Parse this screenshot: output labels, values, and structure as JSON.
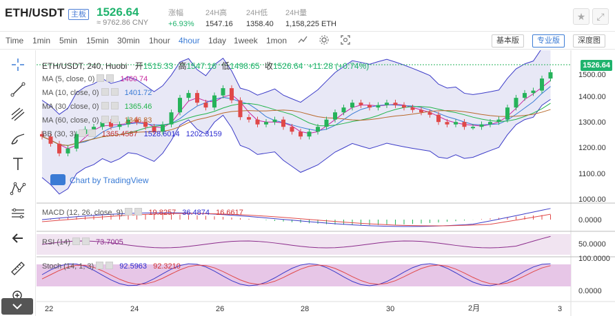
{
  "header": {
    "pair": "ETH/USDT",
    "badge": "主板",
    "price": "1526.64",
    "cny": "≈ 9762.86 CNY",
    "stats": [
      {
        "label": "涨幅",
        "value": "+6.93%"
      },
      {
        "label": "24H高",
        "value": "1547.16"
      },
      {
        "label": "24H低",
        "value": "1358.40"
      },
      {
        "label": "24H量",
        "value": "1,158,225 ETH"
      }
    ],
    "star_icon": "star-icon",
    "expand_icon": "expand-icon"
  },
  "toolbar": {
    "timeframes": [
      "Time",
      "1min",
      "5min",
      "15min",
      "30min",
      "1hour",
      "4hour",
      "1day",
      "1week",
      "1mon"
    ],
    "active": "4hour",
    "versions": [
      "基本版",
      "专业版",
      "深度图"
    ],
    "active_version": "专业版"
  },
  "chart": {
    "title": "ETH/USDT, 240, Huobi",
    "open_label": "开",
    "open": "1515.33",
    "high_label": "高",
    "high": "1547.16",
    "low_label": "低",
    "low": "1498.65",
    "close_label": "收",
    "close": "1526.64",
    "change": "+11.28 (+0.74%)",
    "current_price": "1526.64",
    "watermark": "Chart by TradingView",
    "indicators": [
      {
        "name": "MA (5, close, 0)",
        "value": "1460.74",
        "color": "#c7259c"
      },
      {
        "name": "MA (10, close, 0)",
        "value": "1401.72",
        "color": "#3a7bd5"
      },
      {
        "name": "MA (30, close, 0)",
        "value": "1365.46",
        "color": "#21b44a"
      },
      {
        "name": "MA (60, close, 0)",
        "value": "1346.83",
        "color": "#b8682a"
      }
    ],
    "bb": {
      "name": "BB (30, 3)",
      "v1": "1365.4587",
      "v2": "1528.6014",
      "v3": "1202.3159"
    },
    "macd": {
      "name": "MACD (12, 26, close, 9)",
      "v1": "19.8257",
      "v2": "36.4874",
      "v3": "16.6617"
    },
    "rsi": {
      "name": "RSI (14)",
      "value": "73.7005"
    },
    "stoch": {
      "name": "Stoch (14, 1, 3)",
      "v1": "92.5963",
      "v2": "92.3210"
    },
    "price_axis": [
      "1500.00",
      "1400.00",
      "1300.00",
      "1200.00",
      "1100.00",
      "1000.00"
    ],
    "macd_axis": [
      "0.0000"
    ],
    "rsi_axis": [
      "50.0000"
    ],
    "stoch_axis": [
      "100.0000",
      "0.0000"
    ],
    "dates": [
      "22",
      "24",
      "26",
      "28",
      "30",
      "2月",
      "3"
    ]
  }
}
